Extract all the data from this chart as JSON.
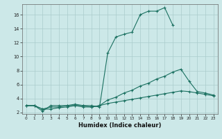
{
  "xlabel": "Humidex (Indice chaleur)",
  "bg_color": "#cce8e8",
  "grid_color": "#aacccc",
  "line_color": "#1a7060",
  "xlim": [
    -0.5,
    23.5
  ],
  "ylim": [
    1.8,
    17.5
  ],
  "yticks": [
    2,
    4,
    6,
    8,
    10,
    12,
    14,
    16
  ],
  "xticks": [
    0,
    1,
    2,
    3,
    4,
    5,
    6,
    7,
    8,
    9,
    10,
    11,
    12,
    13,
    14,
    15,
    16,
    17,
    18,
    19,
    20,
    21,
    22,
    23
  ],
  "series": [
    {
      "x": [
        0,
        1,
        2,
        3,
        4,
        5,
        6,
        7,
        8,
        9,
        10,
        11,
        12,
        13,
        14,
        15,
        16,
        17,
        18
      ],
      "y": [
        3,
        3,
        2.2,
        3,
        3,
        3,
        3,
        3,
        3,
        2.8,
        10.5,
        12.8,
        13.2,
        13.5,
        16,
        16.5,
        16.5,
        17,
        14.5
      ]
    },
    {
      "x": [
        0,
        1,
        2,
        3,
        4,
        5,
        6,
        7,
        8,
        9,
        10,
        11,
        12,
        13,
        14,
        15,
        16,
        17,
        18,
        19,
        20,
        21,
        22,
        23
      ],
      "y": [
        3,
        3,
        2.5,
        2.8,
        2.8,
        3,
        3.2,
        3,
        2.8,
        3,
        3.8,
        4.2,
        4.8,
        5.2,
        5.8,
        6.2,
        6.8,
        7.2,
        7.8,
        8.2,
        6.5,
        5,
        4.8,
        4.5
      ]
    },
    {
      "x": [
        0,
        1,
        2,
        3,
        4,
        5,
        6,
        7,
        8,
        9,
        10,
        11,
        12,
        13,
        14,
        15,
        16,
        17,
        18,
        19,
        20,
        21,
        22,
        23
      ],
      "y": [
        3,
        3,
        2.5,
        2.5,
        2.7,
        2.8,
        3.0,
        2.8,
        2.8,
        3.0,
        3.3,
        3.5,
        3.7,
        3.9,
        4.1,
        4.3,
        4.5,
        4.7,
        4.9,
        5.1,
        5.0,
        4.8,
        4.6,
        4.4
      ]
    }
  ]
}
